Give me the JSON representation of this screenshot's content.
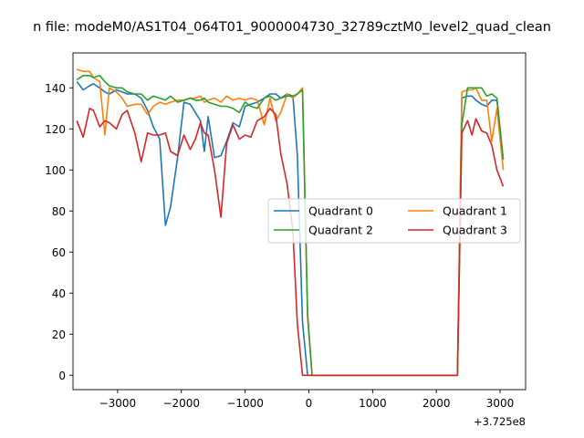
{
  "chart_data": {
    "type": "line",
    "title": "n file: modeM0/AS1T04_064T01_9000004730_32789cztM0_level2_quad_clean",
    "xlabel": "",
    "ylabel": "",
    "x_offset_label": "+3.725e8",
    "xlim": [
      -3700,
      3400
    ],
    "ylim": [
      -7,
      157
    ],
    "x_ticks": [
      -3000,
      -2000,
      -1000,
      0,
      1000,
      2000,
      3000
    ],
    "x_tick_labels": [
      "−3000",
      "−2000",
      "−1000",
      "0",
      "1000",
      "2000",
      "3000"
    ],
    "y_ticks": [
      0,
      20,
      40,
      60,
      80,
      100,
      120,
      140
    ],
    "y_tick_labels": [
      "0",
      "20",
      "40",
      "60",
      "80",
      "100",
      "120",
      "140"
    ],
    "grid": false,
    "legend": {
      "placement": "center-right",
      "columns": 2
    },
    "series": [
      {
        "name": "Quadrant 0",
        "color": "#1f77b4",
        "x": [
          -3640,
          -3540,
          -3440,
          -3380,
          -3280,
          -3200,
          -3130,
          -3020,
          -2930,
          -2850,
          -2730,
          -2630,
          -2530,
          -2440,
          -2340,
          -2250,
          -2170,
          -2060,
          -1960,
          -1860,
          -1780,
          -1700,
          -1640,
          -1580,
          -1480,
          -1380,
          -1290,
          -1190,
          -1090,
          -1000,
          -910,
          -810,
          -700,
          -610,
          -520,
          -440,
          -340,
          -250,
          -180,
          -100,
          -20,
          50,
          150,
          250,
          400,
          700,
          1000,
          1300,
          1600,
          1900,
          2100,
          2250,
          2330,
          2400,
          2490,
          2560,
          2620,
          2710,
          2790,
          2870,
          2950,
          3050
        ],
        "y": [
          143,
          139,
          141,
          142,
          140,
          138,
          137,
          139,
          138,
          137,
          137,
          135,
          129,
          121,
          115,
          73,
          82,
          106,
          133,
          132,
          128,
          124,
          109,
          126,
          106,
          107,
          114,
          123,
          121,
          131,
          132,
          133,
          135,
          137,
          137,
          135,
          137,
          136,
          107,
          26,
          0,
          0,
          0,
          0,
          0,
          0,
          0,
          0,
          0,
          0,
          0,
          0,
          0,
          135,
          136,
          136,
          134,
          132,
          131,
          134,
          134,
          105
        ]
      },
      {
        "name": "Quadrant 1",
        "color": "#ff7f0e",
        "x": [
          -3640,
          -3540,
          -3440,
          -3380,
          -3280,
          -3200,
          -3130,
          -3020,
          -2930,
          -2850,
          -2730,
          -2630,
          -2530,
          -2440,
          -2340,
          -2250,
          -2170,
          -2060,
          -1960,
          -1860,
          -1780,
          -1700,
          -1640,
          -1580,
          -1480,
          -1380,
          -1290,
          -1190,
          -1090,
          -1000,
          -910,
          -810,
          -700,
          -610,
          -520,
          -440,
          -340,
          -250,
          -180,
          -100,
          -20,
          50,
          150,
          250,
          400,
          700,
          1000,
          1300,
          1600,
          1900,
          2100,
          2250,
          2330,
          2400,
          2490,
          2560,
          2620,
          2710,
          2790,
          2870,
          2950,
          3050
        ],
        "y": [
          149,
          148,
          148,
          145,
          143,
          117,
          140,
          138,
          135,
          131,
          132,
          132,
          127,
          131,
          133,
          132,
          133,
          134,
          134,
          135,
          135,
          136,
          133,
          134,
          135,
          133,
          136,
          134,
          135,
          134,
          135,
          134,
          122,
          135,
          124,
          128,
          137,
          135,
          137,
          140,
          28,
          0,
          0,
          0,
          0,
          0,
          0,
          0,
          0,
          0,
          0,
          0,
          0,
          138,
          139,
          139,
          140,
          134,
          134,
          114,
          130,
          100
        ]
      },
      {
        "name": "Quadrant 2",
        "color": "#2ca02c",
        "x": [
          -3640,
          -3540,
          -3440,
          -3380,
          -3280,
          -3200,
          -3130,
          -3020,
          -2930,
          -2850,
          -2730,
          -2630,
          -2530,
          -2440,
          -2340,
          -2250,
          -2170,
          -2060,
          -1960,
          -1860,
          -1780,
          -1700,
          -1640,
          -1580,
          -1480,
          -1380,
          -1290,
          -1190,
          -1090,
          -1000,
          -910,
          -810,
          -700,
          -610,
          -520,
          -440,
          -340,
          -250,
          -180,
          -100,
          -20,
          50,
          150,
          250,
          400,
          700,
          1000,
          1300,
          1600,
          1900,
          2100,
          2250,
          2330,
          2400,
          2490,
          2560,
          2620,
          2710,
          2790,
          2870,
          2950,
          3050
        ],
        "y": [
          144,
          146,
          146,
          145,
          146,
          143,
          141,
          140,
          140,
          138,
          137,
          137,
          134,
          136,
          135,
          134,
          136,
          133,
          134,
          135,
          134,
          134,
          135,
          133,
          132,
          131,
          131,
          130,
          128,
          133,
          131,
          130,
          135,
          136,
          134,
          135,
          136,
          136,
          137,
          139,
          30,
          0,
          0,
          0,
          0,
          0,
          0,
          0,
          0,
          0,
          0,
          0,
          0,
          122,
          140,
          140,
          140,
          140,
          136,
          137,
          135,
          105
        ]
      },
      {
        "name": "Quadrant 3",
        "color": "#d62728",
        "x": [
          -3640,
          -3540,
          -3440,
          -3380,
          -3280,
          -3200,
          -3130,
          -3020,
          -2930,
          -2850,
          -2730,
          -2630,
          -2530,
          -2440,
          -2340,
          -2250,
          -2170,
          -2060,
          -1960,
          -1860,
          -1780,
          -1700,
          -1640,
          -1580,
          -1480,
          -1380,
          -1290,
          -1190,
          -1090,
          -1000,
          -910,
          -810,
          -700,
          -610,
          -520,
          -440,
          -340,
          -250,
          -180,
          -100,
          -20,
          50,
          150,
          250,
          400,
          700,
          1000,
          1300,
          1600,
          1900,
          2100,
          2250,
          2330,
          2400,
          2490,
          2560,
          2620,
          2710,
          2790,
          2870,
          2950,
          3050
        ],
        "y": [
          124,
          116,
          130,
          129,
          121,
          124,
          123,
          120,
          127,
          129,
          118,
          104,
          118,
          117,
          117,
          118,
          109,
          107,
          117,
          110,
          115,
          123,
          118,
          117,
          100,
          77,
          113,
          122,
          115,
          117,
          116,
          124,
          126,
          130,
          127,
          108,
          93,
          70,
          25,
          0,
          0,
          0,
          0,
          0,
          0,
          0,
          0,
          0,
          0,
          0,
          0,
          0,
          0,
          118,
          124,
          117,
          125,
          119,
          118,
          112,
          100,
          92
        ]
      }
    ]
  }
}
